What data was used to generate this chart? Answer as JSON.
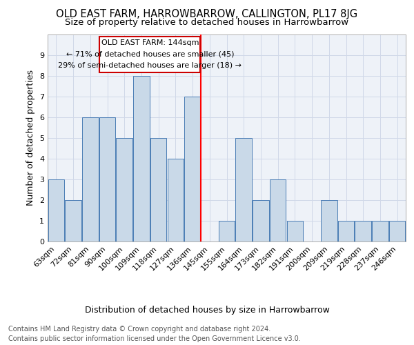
{
  "title": "OLD EAST FARM, HARROWBARROW, CALLINGTON, PL17 8JG",
  "subtitle": "Size of property relative to detached houses in Harrowbarrow",
  "xlabel": "Distribution of detached houses by size in Harrowbarrow",
  "ylabel": "Number of detached properties",
  "footnote1": "Contains HM Land Registry data © Crown copyright and database right 2024.",
  "footnote2": "Contains public sector information licensed under the Open Government Licence v3.0.",
  "categories": [
    "63sqm",
    "72sqm",
    "81sqm",
    "90sqm",
    "100sqm",
    "109sqm",
    "118sqm",
    "127sqm",
    "136sqm",
    "145sqm",
    "155sqm",
    "164sqm",
    "173sqm",
    "182sqm",
    "191sqm",
    "200sqm",
    "209sqm",
    "219sqm",
    "228sqm",
    "237sqm",
    "246sqm"
  ],
  "values": [
    3,
    2,
    6,
    6,
    5,
    8,
    5,
    4,
    7,
    0,
    1,
    5,
    2,
    3,
    1,
    0,
    2,
    1,
    1,
    1,
    1
  ],
  "bar_color": "#c9d9e8",
  "bar_edge_color": "#4a7db5",
  "property_line_x": 8.5,
  "property_label": "OLD EAST FARM: 144sqm",
  "annotation_line1": "← 71% of detached houses are smaller (45)",
  "annotation_line2": "29% of semi-detached houses are larger (18) →",
  "annotation_box_color": "#cc0000",
  "grid_color": "#d0d8e8",
  "ylim": [
    0,
    10
  ],
  "yticks": [
    0,
    1,
    2,
    3,
    4,
    5,
    6,
    7,
    8,
    9,
    10
  ],
  "title_fontsize": 10.5,
  "subtitle_fontsize": 9.5,
  "label_fontsize": 9,
  "tick_fontsize": 8,
  "annotation_fontsize": 8,
  "xlabel_fontsize": 9,
  "footnote_fontsize": 7,
  "bg_color": "#eef2f8"
}
